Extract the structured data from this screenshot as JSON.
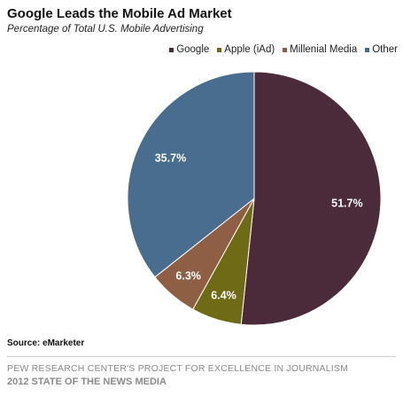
{
  "header": {
    "title": "Google Leads the Mobile Ad Market",
    "subtitle": "Percentage of Total U.S. Mobile Advertising"
  },
  "chart_data": {
    "type": "pie",
    "title": "Google Leads the Mobile Ad Market",
    "subtitle": "Percentage of Total U.S. Mobile Advertising",
    "legend_position": "top-right",
    "slices": [
      {
        "name": "Google",
        "value": 51.7,
        "label": "51.7%",
        "color": "#4b2a3a"
      },
      {
        "name": "Apple (iAd)",
        "value": 6.4,
        "label": "6.4%",
        "color": "#6f6a16"
      },
      {
        "name": "Millenial Media",
        "value": 6.3,
        "label": "6.3%",
        "color": "#8f5f45"
      },
      {
        "name": "Other",
        "value": 35.7,
        "label": "35.7%",
        "color": "#486d8f"
      }
    ]
  },
  "footer": {
    "source": "Source: eMarketer",
    "line1": "PEW RESEARCH CENTER'S PROJECT FOR EXCELLENCE IN JOURNALISM",
    "line2": "2012 STATE OF THE NEWS MEDIA"
  }
}
